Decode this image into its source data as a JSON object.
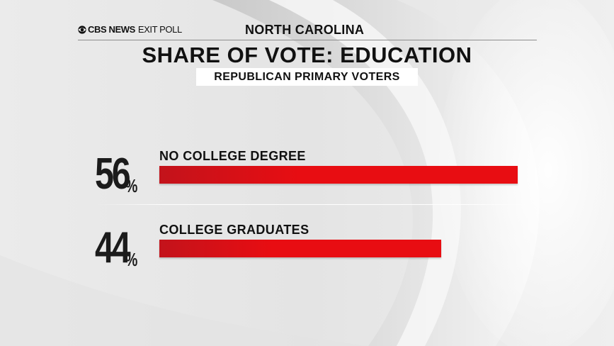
{
  "brand": {
    "name": "CBS NEWS",
    "product": "EXIT POLL",
    "logo_icon": "cbs-eye-icon"
  },
  "region": "NORTH CAROLINA",
  "chart_data": {
    "type": "bar",
    "orientation": "horizontal",
    "title": "SHARE OF VOTE: EDUCATION",
    "subtitle": "REPUBLICAN PRIMARY VOTERS",
    "unit": "%",
    "categories": [
      "NO COLLEGE DEGREE",
      "COLLEGE GRADUATES"
    ],
    "values": [
      56,
      44
    ],
    "value_labels": [
      "56",
      "44"
    ],
    "bar_color": "#e80d12",
    "xlim": [
      0,
      56
    ],
    "grid": false,
    "legend": "none"
  }
}
